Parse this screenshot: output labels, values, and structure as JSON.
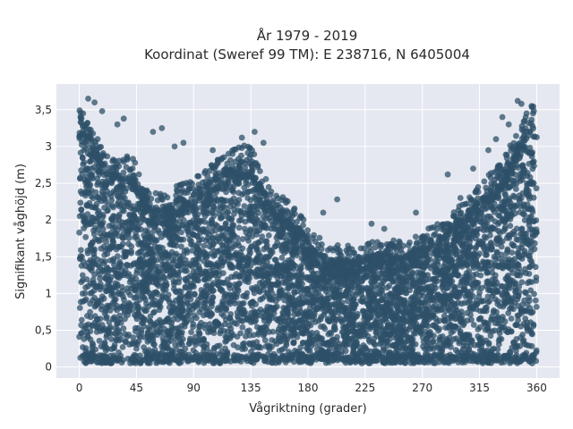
{
  "chart_data": {
    "type": "scatter",
    "title_line1": "År 1979 - 2019",
    "title_line2": "Koordinat (Sweref 99 TM): E 238716, N 6405004",
    "xlabel": "Vågriktning (grader)",
    "ylabel": "Signifikant våghöjd (m)",
    "xlim": [
      -18,
      378
    ],
    "ylim": [
      -0.15,
      3.85
    ],
    "x_ticks": [
      0,
      45,
      90,
      135,
      180,
      225,
      270,
      315,
      360
    ],
    "x_tick_labels": [
      "0",
      "45",
      "90",
      "135",
      "180",
      "225",
      "270",
      "315",
      "360"
    ],
    "y_ticks": [
      0,
      0.5,
      1,
      1.5,
      2,
      2.5,
      3,
      3.5
    ],
    "y_tick_labels": [
      "0",
      "0,5",
      "1",
      "1,5",
      "2",
      "2,5",
      "3",
      "3,5"
    ],
    "grid": true,
    "background": "#e5e8f0",
    "marker_color": "#2e5068",
    "upper_envelope": {
      "x": [
        0,
        10,
        20,
        30,
        40,
        45,
        55,
        65,
        80,
        90,
        100,
        110,
        120,
        130,
        135,
        145,
        155,
        165,
        175,
        185,
        195,
        210,
        225,
        240,
        255,
        270,
        285,
        300,
        315,
        330,
        345,
        355,
        360
      ],
      "y": [
        3.3,
        3.1,
        2.7,
        2.6,
        2.7,
        2.55,
        2.2,
        2.15,
        2.3,
        2.35,
        2.5,
        2.65,
        2.75,
        2.85,
        2.8,
        2.4,
        2.2,
        2.05,
        1.85,
        1.6,
        1.5,
        1.45,
        1.5,
        1.55,
        1.5,
        1.65,
        1.8,
        2.0,
        2.3,
        2.55,
        3.0,
        3.4,
        3.45
      ]
    },
    "outliers": [
      {
        "x": 7,
        "y": 3.65
      },
      {
        "x": 12,
        "y": 3.6
      },
      {
        "x": 3,
        "y": 3.45
      },
      {
        "x": 18,
        "y": 3.48
      },
      {
        "x": 30,
        "y": 3.3
      },
      {
        "x": 35,
        "y": 3.38
      },
      {
        "x": 58,
        "y": 3.2
      },
      {
        "x": 65,
        "y": 3.25
      },
      {
        "x": 75,
        "y": 3.0
      },
      {
        "x": 82,
        "y": 3.05
      },
      {
        "x": 105,
        "y": 2.95
      },
      {
        "x": 128,
        "y": 3.12
      },
      {
        "x": 138,
        "y": 3.2
      },
      {
        "x": 145,
        "y": 3.05
      },
      {
        "x": 203,
        "y": 2.28
      },
      {
        "x": 192,
        "y": 2.1
      },
      {
        "x": 230,
        "y": 1.95
      },
      {
        "x": 240,
        "y": 1.88
      },
      {
        "x": 265,
        "y": 2.1
      },
      {
        "x": 290,
        "y": 2.62
      },
      {
        "x": 300,
        "y": 2.3
      },
      {
        "x": 310,
        "y": 2.7
      },
      {
        "x": 328,
        "y": 3.1
      },
      {
        "x": 338,
        "y": 3.3
      },
      {
        "x": 345,
        "y": 3.62
      },
      {
        "x": 348,
        "y": 3.58
      },
      {
        "x": 352,
        "y": 3.45
      },
      {
        "x": 356,
        "y": 3.55
      },
      {
        "x": 322,
        "y": 2.95
      },
      {
        "x": 333,
        "y": 3.4
      }
    ]
  }
}
